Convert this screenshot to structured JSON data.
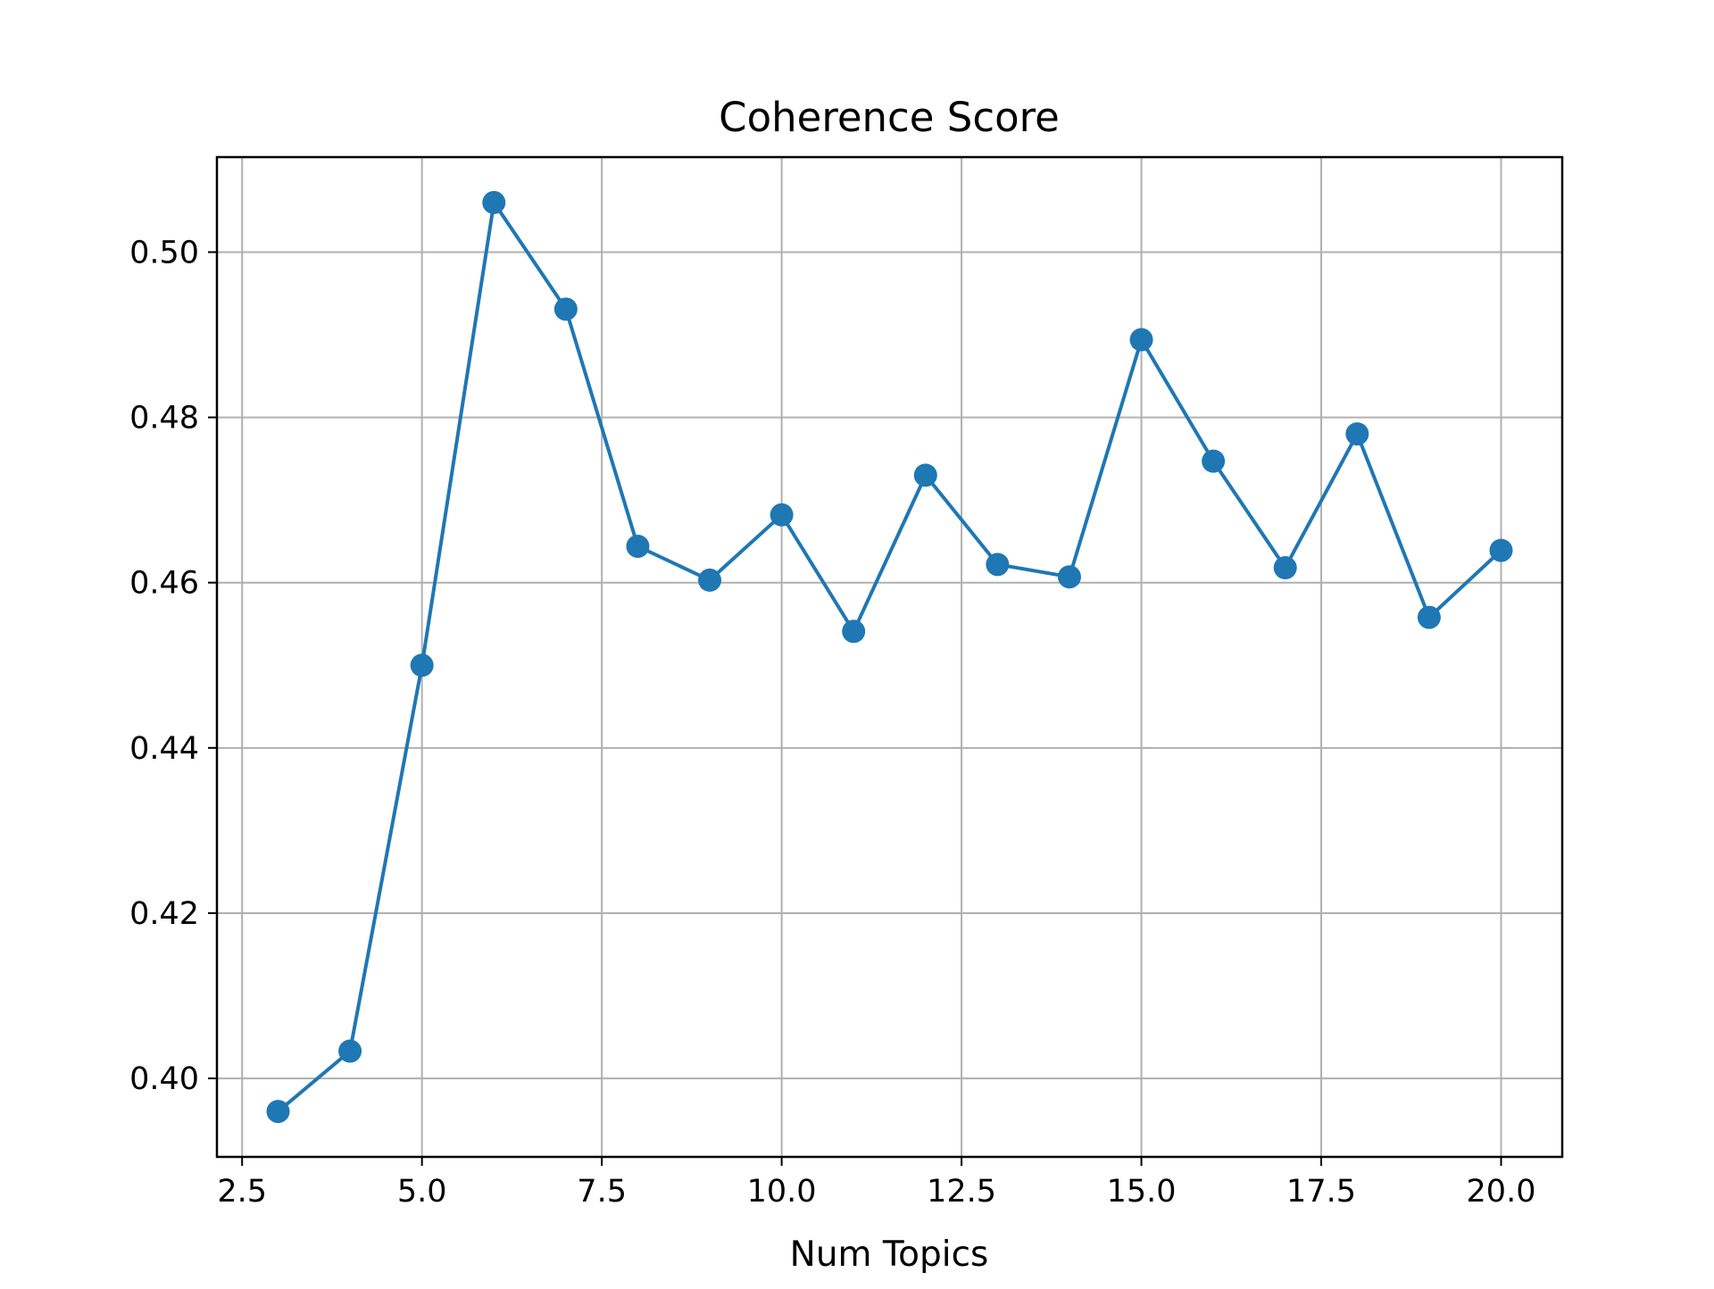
{
  "chart_data": {
    "type": "line",
    "title": "Coherence Score",
    "xlabel": "Num Topics",
    "ylabel": "",
    "xlim": [
      2.15,
      20.85
    ],
    "ylim": [
      0.3905,
      0.5115
    ],
    "xticks": [
      2.5,
      5.0,
      7.5,
      10.0,
      12.5,
      15.0,
      17.5,
      20.0
    ],
    "xtick_labels": [
      "2.5",
      "5.0",
      "7.5",
      "10.0",
      "12.5",
      "15.0",
      "17.5",
      "20.0"
    ],
    "yticks": [
      0.4,
      0.42,
      0.44,
      0.46,
      0.48,
      0.5
    ],
    "ytick_labels": [
      "0.40",
      "0.42",
      "0.44",
      "0.46",
      "0.48",
      "0.50"
    ],
    "grid": true,
    "legend": false,
    "series": [
      {
        "color": "#1f77b4",
        "marker": "circle",
        "x": [
          3,
          4,
          5,
          6,
          7,
          8,
          9,
          10,
          11,
          12,
          13,
          14,
          15,
          16,
          17,
          18,
          19,
          20
        ],
        "y": [
          0.396,
          0.4033,
          0.45,
          0.506,
          0.4931,
          0.4644,
          0.4603,
          0.4682,
          0.4541,
          0.473,
          0.4622,
          0.4607,
          0.4894,
          0.4747,
          0.4618,
          0.478,
          0.4558,
          0.4639
        ]
      }
    ]
  }
}
